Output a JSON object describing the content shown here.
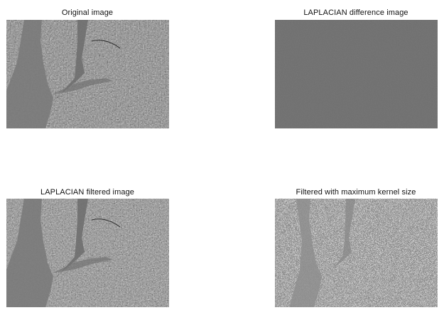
{
  "panels": [
    {
      "title": "Original image"
    },
    {
      "title": "LAPLACIAN difference image"
    },
    {
      "title": "LAPLACIAN filtered image"
    },
    {
      "title": "Filtered with maximum kernel size"
    }
  ],
  "colors": {
    "background": "#ffffff",
    "text": "#111111",
    "difference_gray": "#6e6e6e"
  }
}
